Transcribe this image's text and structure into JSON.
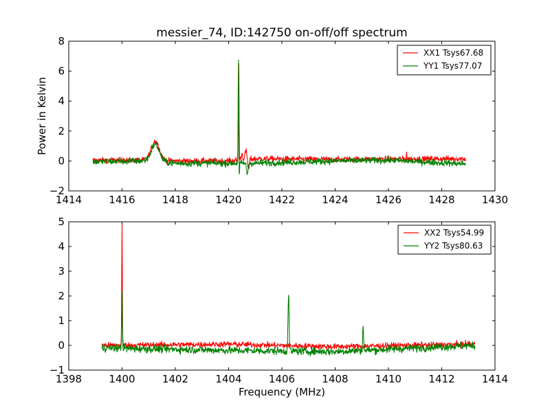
{
  "figure": {
    "title": "messier_74, ID:142750 on-off/off spectrum"
  },
  "chart_data": [
    {
      "type": "line",
      "title": "messier_74, ID:142750 on-off/off spectrum",
      "xlabel": "",
      "ylabel": "Power in Kelvin",
      "xlim": [
        1414,
        1430
      ],
      "ylim": [
        -2,
        8
      ],
      "xticks": [
        1414,
        1416,
        1418,
        1420,
        1422,
        1424,
        1426,
        1428,
        1430
      ],
      "xtick_labels": [
        "1414",
        "1416",
        "1418",
        "1420",
        "1422",
        "1424",
        "1426",
        "1428",
        "1430"
      ],
      "yticks": [
        -2,
        0,
        2,
        4,
        6,
        8
      ],
      "ytick_labels": [
        "−2",
        "0",
        "2",
        "4",
        "6",
        "8"
      ],
      "legend_position": "top-right",
      "x_range": [
        1414.9,
        1428.9
      ],
      "series": [
        {
          "name": "XX1 Tsys67.68",
          "color": "#ff0000",
          "baseline": [
            [
              1414.9,
              0.05
            ],
            [
              1417.0,
              0.05
            ],
            [
              1418.0,
              0.0
            ],
            [
              1420.0,
              0.0
            ],
            [
              1421.0,
              0.15
            ],
            [
              1424.0,
              0.1
            ],
            [
              1428.9,
              0.15
            ]
          ],
          "noise": 0.1,
          "features": [
            {
              "center": 1417.25,
              "amplitude": 1.3,
              "width": 0.15
            },
            {
              "center": 1420.38,
              "amplitude": 7.1,
              "width": 0.012
            },
            {
              "center": 1420.5,
              "amplitude": 0.4,
              "width": 0.03
            },
            {
              "center": 1420.65,
              "amplitude": 0.6,
              "width": 0.03
            },
            {
              "center": 1420.75,
              "amplitude": -0.7,
              "width": 0.025
            },
            {
              "center": 1426.68,
              "amplitude": 0.45,
              "width": 0.01
            }
          ]
        },
        {
          "name": "YY1 Tsys77.07",
          "color": "#008000",
          "baseline": [
            [
              1414.9,
              -0.05
            ],
            [
              1417.0,
              0.0
            ],
            [
              1418.0,
              -0.15
            ],
            [
              1420.0,
              -0.15
            ],
            [
              1421.0,
              -0.15
            ],
            [
              1424.0,
              0.0
            ],
            [
              1426.0,
              0.05
            ],
            [
              1428.9,
              -0.2
            ]
          ],
          "noise": 0.11,
          "features": [
            {
              "center": 1417.25,
              "amplitude": 1.15,
              "width": 0.15
            },
            {
              "center": 1420.37,
              "amplitude": 7.05,
              "width": 0.012
            },
            {
              "center": 1420.4,
              "amplitude": -1.2,
              "width": 0.01
            },
            {
              "center": 1420.7,
              "amplitude": -0.7,
              "width": 0.03
            }
          ]
        }
      ]
    },
    {
      "type": "line",
      "title": "",
      "xlabel": "Frequency (MHz)",
      "ylabel": "",
      "xlim": [
        1398,
        1414
      ],
      "ylim": [
        -1,
        5
      ],
      "xticks": [
        1398,
        1400,
        1402,
        1404,
        1406,
        1408,
        1410,
        1412,
        1414
      ],
      "xtick_labels": [
        "1398",
        "1400",
        "1402",
        "1404",
        "1406",
        "1408",
        "1410",
        "1412",
        "1414"
      ],
      "yticks": [
        -1,
        0,
        1,
        2,
        3,
        4,
        5
      ],
      "ytick_labels": [
        "−1",
        "0",
        "1",
        "2",
        "3",
        "4",
        "5"
      ],
      "legend_position": "top-right",
      "x_range": [
        1399.25,
        1413.25
      ],
      "series": [
        {
          "name": "XX2 Tsys54.99",
          "color": "#ff0000",
          "baseline": [
            [
              1399.25,
              0.0
            ],
            [
              1404.0,
              0.05
            ],
            [
              1408.0,
              -0.05
            ],
            [
              1413.25,
              0.05
            ]
          ],
          "noise": 0.06,
          "features": [
            {
              "center": 1400.0,
              "amplitude": 4.9,
              "width": 0.012
            }
          ]
        },
        {
          "name": "YY2 Tsys80.63",
          "color": "#008000",
          "baseline": [
            [
              1399.25,
              -0.1
            ],
            [
              1404.0,
              -0.2
            ],
            [
              1408.0,
              -0.25
            ],
            [
              1413.25,
              0.0
            ]
          ],
          "noise": 0.08,
          "features": [
            {
              "center": 1400.0,
              "amplitude": 2.3,
              "width": 0.012
            },
            {
              "center": 1406.25,
              "amplitude": 2.35,
              "width": 0.02
            },
            {
              "center": 1409.05,
              "amplitude": 1.15,
              "width": 0.015
            }
          ]
        }
      ]
    }
  ]
}
